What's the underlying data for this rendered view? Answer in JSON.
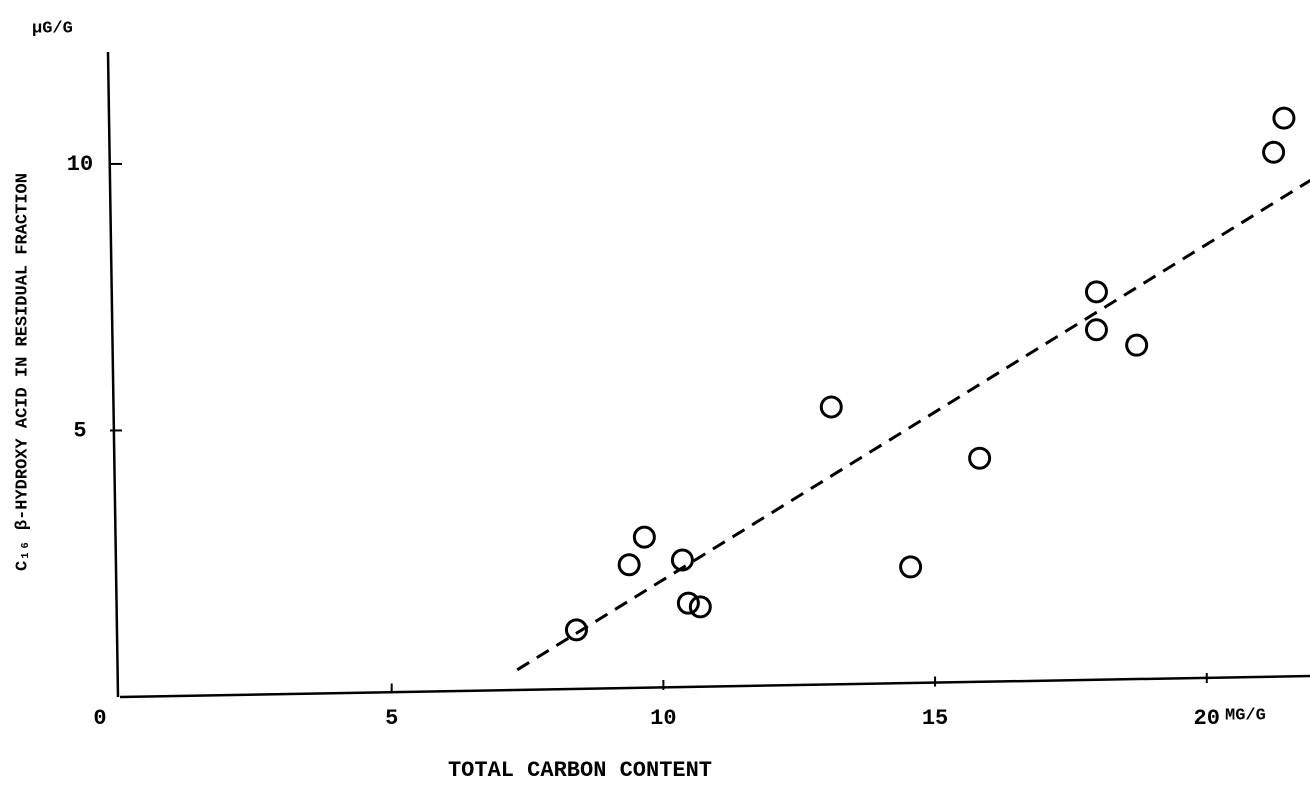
{
  "chart_data": {
    "type": "scatter",
    "xlabel": "TOTAL CARBON CONTENT",
    "ylabel": "C₁₆ β-HYDROXY ACID IN RESIDUAL FRACTION",
    "x_unit": "MG/G",
    "y_unit": "μG/G",
    "xlim": [
      0,
      21.9
    ],
    "ylim": [
      0,
      12.1
    ],
    "xticks": [
      0,
      5,
      10,
      15,
      20
    ],
    "yticks": [
      5,
      10
    ],
    "color": "#000000",
    "series": [
      {
        "x": [
          8.4,
          9.37,
          9.65,
          10.35,
          10.46,
          10.68,
          13.09,
          14.55,
          15.82,
          17.97,
          17.97,
          18.71,
          21.23,
          21.42
        ],
        "values": [
          1.26,
          2.48,
          3.0,
          2.57,
          1.76,
          1.69,
          5.44,
          2.44,
          4.48,
          7.6,
          6.89,
          6.6,
          10.22,
          10.86
        ]
      }
    ],
    "trendline": {
      "x": [
        7.31,
        21.92
      ],
      "values": [
        0.51,
        9.7
      ]
    }
  }
}
